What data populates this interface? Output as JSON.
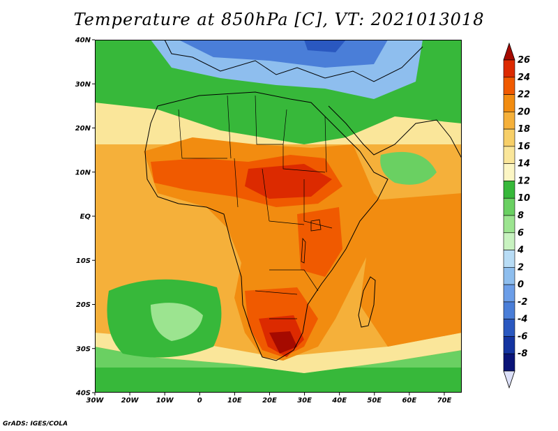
{
  "title": "Temperature at 850hPa [C], VT: 2021013018",
  "credit": "GrADS: IGES/COLA",
  "map": {
    "region": "Africa",
    "variable": "Temperature at 850hPa",
    "units": "C",
    "valid_time": "2021013018",
    "lat_labels": [
      "40N",
      "30N",
      "20N",
      "10N",
      "EQ",
      "10S",
      "20S",
      "30S",
      "40S"
    ],
    "lon_labels": [
      "30W",
      "20W",
      "10W",
      "0",
      "10E",
      "20E",
      "30E",
      "40E",
      "50E",
      "60E",
      "70E"
    ]
  },
  "colorbar": {
    "labels": [
      "26",
      "24",
      "22",
      "20",
      "18",
      "16",
      "14",
      "12",
      "10",
      "8",
      "6",
      "4",
      "2",
      "0",
      "-2",
      "-4",
      "-6",
      "-8"
    ],
    "colors": [
      "#a50a00",
      "#dc2a00",
      "#f05a00",
      "#f28c10",
      "#f5b03a",
      "#f7cf68",
      "#fae69a",
      "#fcf6c4",
      "#37b83a",
      "#6ad062",
      "#9ce490",
      "#c8f2c0",
      "#b8dcf5",
      "#8ebeee",
      "#6c9ee8",
      "#4a7ed8",
      "#2a58c0",
      "#1434a0",
      "#0a1478",
      "#dce0f8"
    ]
  }
}
